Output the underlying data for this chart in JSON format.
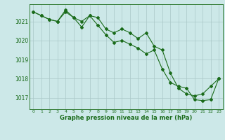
{
  "line1_x": [
    0,
    1,
    2,
    3,
    4,
    5,
    6,
    7,
    8,
    9,
    10,
    11,
    12,
    13,
    14,
    15,
    16,
    17,
    18,
    19,
    20,
    21,
    22,
    23
  ],
  "line1_y": [
    1021.5,
    1021.3,
    1021.1,
    1021.0,
    1021.6,
    1021.2,
    1021.0,
    1021.3,
    1020.8,
    1020.3,
    1019.9,
    1020.0,
    1019.8,
    1019.6,
    1019.3,
    1019.5,
    1018.5,
    1017.8,
    1017.6,
    1017.5,
    1016.9,
    1016.85,
    1016.9,
    1018.0
  ],
  "line2_x": [
    0,
    1,
    2,
    3,
    4,
    5,
    6,
    7,
    8,
    9,
    10,
    11,
    12,
    13,
    14,
    15,
    16,
    17,
    18,
    19,
    20,
    21,
    22,
    23
  ],
  "line2_y": [
    1021.5,
    1021.3,
    1021.1,
    1021.0,
    1021.5,
    1021.2,
    1020.7,
    1021.3,
    1021.2,
    1020.6,
    1020.4,
    1020.6,
    1020.4,
    1020.1,
    1020.4,
    1019.7,
    1019.5,
    1018.3,
    1017.5,
    1017.2,
    1017.1,
    1017.2,
    1017.6,
    1018.0
  ],
  "bg_color": "#cce8e8",
  "line_color": "#1a6b1a",
  "grid_color": "#aac8c8",
  "xlabel": "Graphe pression niveau de la mer (hPa)",
  "yticks": [
    1017,
    1018,
    1019,
    1020,
    1021
  ],
  "xticks": [
    0,
    1,
    2,
    3,
    4,
    5,
    6,
    7,
    8,
    9,
    10,
    11,
    12,
    13,
    14,
    15,
    16,
    17,
    18,
    19,
    20,
    21,
    22,
    23
  ],
  "ylim": [
    1016.4,
    1021.9
  ],
  "xlim": [
    -0.5,
    23.5
  ],
  "marker": "D",
  "markersize": 2.0,
  "linewidth": 0.8
}
